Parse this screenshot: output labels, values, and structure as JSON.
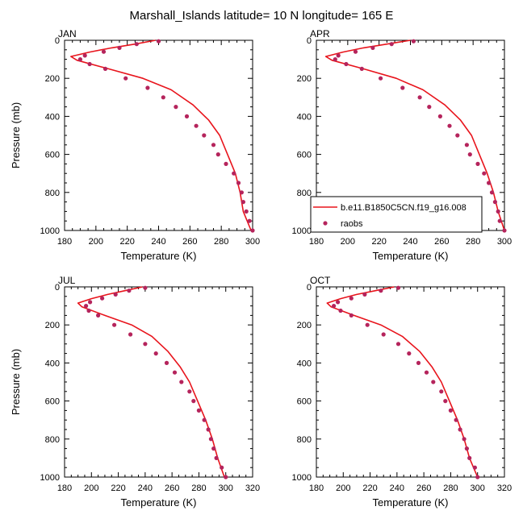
{
  "title": "Marshall_Islands  latitude= 10 N longitude= 165 E",
  "colors": {
    "model": "#e8141c",
    "obs": "#b5245c"
  },
  "legend": {
    "model": "b.e11.B1850C5CN.f19_g16.008",
    "obs": "raobs",
    "placement": "inside lower-right of APR panel"
  },
  "chart_data": [
    {
      "type": "line",
      "panel": "JAN",
      "xlabel": "Temperature (K)",
      "ylabel": "Pressure (mb)",
      "xlim": [
        180,
        300
      ],
      "ylim": [
        1000,
        0
      ],
      "y_inverted": true,
      "xticks": [
        180,
        200,
        220,
        240,
        260,
        280,
        300
      ],
      "yticks": [
        0,
        200,
        400,
        600,
        800,
        1000
      ],
      "series": [
        {
          "name": "b.e11.B1850C5CN.f19_g16.008",
          "kind": "line",
          "points": [
            [
              238,
              0
            ],
            [
              225,
              20
            ],
            [
              210,
              40
            ],
            [
              196,
              62
            ],
            [
              184,
              85
            ],
            [
              188,
              105
            ],
            [
              208,
              150
            ],
            [
              230,
              200
            ],
            [
              248,
              260
            ],
            [
              262,
              340
            ],
            [
              272,
              420
            ],
            [
              279,
              500
            ],
            [
              284,
              600
            ],
            [
              289,
              700
            ],
            [
              292,
              800
            ],
            [
              294,
              900
            ],
            [
              299,
              1000
            ]
          ]
        },
        {
          "name": "raobs",
          "kind": "scatter",
          "points": [
            [
              240,
              5
            ],
            [
              226,
              20
            ],
            [
              215,
              40
            ],
            [
              205,
              60
            ],
            [
              193,
              80
            ],
            [
              190,
              100
            ],
            [
              196,
              125
            ],
            [
              206,
              150
            ],
            [
              219,
              200
            ],
            [
              233,
              250
            ],
            [
              243,
              300
            ],
            [
              251,
              350
            ],
            [
              258,
              400
            ],
            [
              264,
              450
            ],
            [
              269,
              500
            ],
            [
              275,
              550
            ],
            [
              278,
              600
            ],
            [
              283,
              650
            ],
            [
              288,
              700
            ],
            [
              291,
              750
            ],
            [
              293,
              800
            ],
            [
              294,
              850
            ],
            [
              296,
              900
            ],
            [
              298,
              950
            ],
            [
              300,
              1000
            ]
          ]
        }
      ]
    },
    {
      "type": "line",
      "panel": "APR",
      "xlabel": "Temperature (K)",
      "ylabel": "",
      "xlim": [
        180,
        300
      ],
      "ylim": [
        1000,
        0
      ],
      "y_inverted": true,
      "xticks": [
        180,
        200,
        220,
        240,
        260,
        280,
        300
      ],
      "yticks": [
        0,
        200,
        400,
        600,
        800,
        1000
      ],
      "series": [
        {
          "name": "b.e11.B1850C5CN.f19_g16.008",
          "kind": "line",
          "points": [
            [
              240,
              0
            ],
            [
              225,
              20
            ],
            [
              210,
              40
            ],
            [
              197,
              62
            ],
            [
              186,
              85
            ],
            [
              190,
              105
            ],
            [
              210,
              150
            ],
            [
              231,
              200
            ],
            [
              248,
              260
            ],
            [
              262,
              340
            ],
            [
              272,
              420
            ],
            [
              279,
              500
            ],
            [
              284,
              600
            ],
            [
              289,
              700
            ],
            [
              293,
              800
            ],
            [
              296,
              900
            ],
            [
              300,
              1000
            ]
          ]
        },
        {
          "name": "raobs",
          "kind": "scatter",
          "points": [
            [
              242,
              5
            ],
            [
              228,
              20
            ],
            [
              216,
              40
            ],
            [
              205,
              60
            ],
            [
              194,
              80
            ],
            [
              192,
              100
            ],
            [
              199,
              125
            ],
            [
              209,
              150
            ],
            [
              221,
              200
            ],
            [
              235,
              250
            ],
            [
              246,
              300
            ],
            [
              252,
              350
            ],
            [
              259,
              400
            ],
            [
              265,
              450
            ],
            [
              270,
              500
            ],
            [
              276,
              550
            ],
            [
              278,
              600
            ],
            [
              283,
              650
            ],
            [
              287,
              700
            ],
            [
              290,
              750
            ],
            [
              292,
              800
            ],
            [
              294,
              850
            ],
            [
              296,
              900
            ],
            [
              297,
              950
            ],
            [
              300,
              1000
            ]
          ]
        }
      ]
    },
    {
      "type": "line",
      "panel": "JUL",
      "xlabel": "Temperature (K)",
      "ylabel": "Pressure (mb)",
      "xlim": [
        180,
        320
      ],
      "ylim": [
        1000,
        0
      ],
      "y_inverted": true,
      "xticks": [
        180,
        200,
        220,
        240,
        260,
        280,
        300,
        320
      ],
      "yticks": [
        0,
        200,
        400,
        600,
        800,
        1000
      ],
      "series": [
        {
          "name": "b.e11.B1850C5CN.f19_g16.008",
          "kind": "line",
          "points": [
            [
              238,
              0
            ],
            [
              225,
              20
            ],
            [
              212,
              40
            ],
            [
              200,
              62
            ],
            [
              190,
              85
            ],
            [
              193,
              105
            ],
            [
              210,
              150
            ],
            [
              230,
              200
            ],
            [
              245,
              260
            ],
            [
              257,
              340
            ],
            [
              266,
              420
            ],
            [
              273,
              500
            ],
            [
              279,
              600
            ],
            [
              285,
              700
            ],
            [
              290,
              800
            ],
            [
              294,
              900
            ],
            [
              299,
              1000
            ]
          ]
        },
        {
          "name": "raobs",
          "kind": "scatter",
          "points": [
            [
              240,
              5
            ],
            [
              228,
              20
            ],
            [
              218,
              40
            ],
            [
              208,
              60
            ],
            [
              199,
              80
            ],
            [
              196,
              100
            ],
            [
              198,
              125
            ],
            [
              205,
              150
            ],
            [
              217,
              200
            ],
            [
              229,
              250
            ],
            [
              240,
              300
            ],
            [
              248,
              350
            ],
            [
              256,
              400
            ],
            [
              262,
              450
            ],
            [
              267,
              500
            ],
            [
              273,
              550
            ],
            [
              276,
              600
            ],
            [
              280,
              650
            ],
            [
              284,
              700
            ],
            [
              287,
              750
            ],
            [
              289,
              800
            ],
            [
              291,
              850
            ],
            [
              293,
              900
            ],
            [
              297,
              950
            ],
            [
              300,
              1000
            ]
          ]
        }
      ]
    },
    {
      "type": "line",
      "panel": "OCT",
      "xlabel": "Temperature (K)",
      "ylabel": "",
      "xlim": [
        180,
        320
      ],
      "ylim": [
        1000,
        0
      ],
      "y_inverted": true,
      "xticks": [
        180,
        200,
        220,
        240,
        260,
        280,
        300,
        320
      ],
      "yticks": [
        0,
        200,
        400,
        600,
        800,
        1000
      ],
      "series": [
        {
          "name": "b.e11.B1850C5CN.f19_g16.008",
          "kind": "line",
          "points": [
            [
              238,
              0
            ],
            [
              224,
              20
            ],
            [
              210,
              40
            ],
            [
              198,
              62
            ],
            [
              188,
              85
            ],
            [
              191,
              105
            ],
            [
              208,
              150
            ],
            [
              228,
              200
            ],
            [
              244,
              260
            ],
            [
              257,
              340
            ],
            [
              266,
              420
            ],
            [
              273,
              500
            ],
            [
              279,
              600
            ],
            [
              285,
              700
            ],
            [
              290,
              800
            ],
            [
              294,
              900
            ],
            [
              300,
              1000
            ]
          ]
        },
        {
          "name": "raobs",
          "kind": "scatter",
          "points": [
            [
              241,
              5
            ],
            [
              228,
              20
            ],
            [
              216,
              40
            ],
            [
              206,
              60
            ],
            [
              196,
              80
            ],
            [
              193,
              100
            ],
            [
              198,
              125
            ],
            [
              206,
              150
            ],
            [
              218,
              200
            ],
            [
              230,
              250
            ],
            [
              241,
              300
            ],
            [
              249,
              350
            ],
            [
              256,
              400
            ],
            [
              262,
              450
            ],
            [
              267,
              500
            ],
            [
              273,
              550
            ],
            [
              276,
              600
            ],
            [
              280,
              650
            ],
            [
              284,
              700
            ],
            [
              287,
              750
            ],
            [
              290,
              800
            ],
            [
              292,
              850
            ],
            [
              294,
              900
            ],
            [
              298,
              950
            ],
            [
              300,
              1000
            ]
          ]
        }
      ]
    }
  ]
}
